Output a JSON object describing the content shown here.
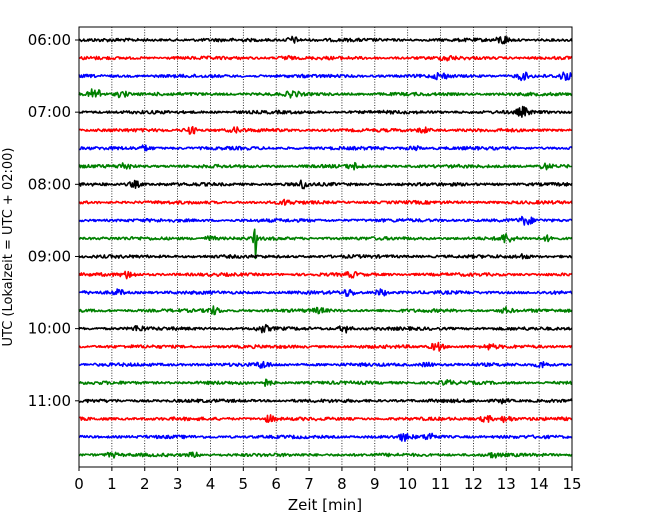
{
  "chart_data": {
    "type": "line",
    "title": "",
    "xlabel": "Zeit  [min]",
    "ylabel": "UTC (Lokalzeit = UTC + 02:00)",
    "xlim": [
      0,
      15
    ],
    "x_ticks": [
      0,
      1,
      2,
      3,
      4,
      5,
      6,
      7,
      8,
      9,
      10,
      11,
      12,
      13,
      14,
      15
    ],
    "grid": "vertical-dotted",
    "y_ticks": [
      {
        "label": "06:00",
        "trace": 0
      },
      {
        "label": "07:00",
        "trace": 4
      },
      {
        "label": "08:00",
        "trace": 8
      },
      {
        "label": "09:00",
        "trace": 12
      },
      {
        "label": "10:00",
        "trace": 16
      },
      {
        "label": "11:00",
        "trace": 20
      }
    ],
    "trace_interval_minutes": 15,
    "trace_colors": [
      "#000000",
      "#ff0000",
      "#0000ff",
      "#008000"
    ],
    "traces": [
      {
        "start": "06:00",
        "events": [
          [
            6.5,
            3
          ],
          [
            12.9,
            4
          ]
        ]
      },
      {
        "start": "06:15",
        "events": [
          [
            6.3,
            2
          ],
          [
            11.2,
            2
          ]
        ]
      },
      {
        "start": "06:30",
        "events": [
          [
            11.0,
            3
          ],
          [
            13.5,
            3.5
          ],
          [
            14.8,
            3.5
          ]
        ]
      },
      {
        "start": "06:45",
        "events": [
          [
            0.5,
            6
          ],
          [
            1.3,
            3
          ],
          [
            6.5,
            2.5
          ]
        ]
      },
      {
        "start": "07:00",
        "events": [
          [
            13.5,
            4
          ]
        ]
      },
      {
        "start": "07:15",
        "events": [
          [
            3.4,
            3.5
          ],
          [
            4.8,
            2
          ],
          [
            10.5,
            2.5
          ]
        ]
      },
      {
        "start": "07:30",
        "events": [
          [
            2.0,
            2
          ],
          [
            10.2,
            2
          ]
        ]
      },
      {
        "start": "07:45",
        "events": [
          [
            1.4,
            3
          ],
          [
            8.4,
            2.5
          ],
          [
            14.2,
            2.5
          ]
        ]
      },
      {
        "start": "08:00",
        "events": [
          [
            1.7,
            3
          ],
          [
            6.8,
            3.5
          ]
        ]
      },
      {
        "start": "08:15",
        "events": [
          [
            6.3,
            2
          ]
        ]
      },
      {
        "start": "08:30",
        "events": [
          [
            13.6,
            4
          ]
        ]
      },
      {
        "start": "08:45",
        "events": [
          [
            5.35,
            26
          ],
          [
            4.0,
            2
          ],
          [
            13.0,
            4
          ],
          [
            14.3,
            2.5
          ]
        ]
      },
      {
        "start": "09:00",
        "events": [
          [
            13.5,
            2
          ]
        ]
      },
      {
        "start": "09:15",
        "events": [
          [
            1.5,
            3
          ],
          [
            8.3,
            2
          ]
        ]
      },
      {
        "start": "09:30",
        "events": [
          [
            1.2,
            2.5
          ],
          [
            8.2,
            3
          ],
          [
            9.2,
            3
          ]
        ]
      },
      {
        "start": "09:45",
        "events": [
          [
            4.1,
            3.5
          ],
          [
            7.3,
            2
          ],
          [
            13.0,
            2.5
          ]
        ]
      },
      {
        "start": "10:00",
        "events": [
          [
            1.8,
            2.5
          ],
          [
            5.6,
            3
          ],
          [
            8.1,
            3.5
          ]
        ]
      },
      {
        "start": "10:15",
        "events": [
          [
            10.9,
            4
          ],
          [
            12.5,
            2
          ]
        ]
      },
      {
        "start": "10:30",
        "events": [
          [
            5.6,
            3
          ],
          [
            10.6,
            2
          ],
          [
            14.1,
            3
          ]
        ]
      },
      {
        "start": "10:45",
        "events": [
          [
            5.7,
            3
          ],
          [
            11.2,
            2
          ]
        ]
      },
      {
        "start": "11:00",
        "events": [
          [
            12.9,
            2
          ]
        ]
      },
      {
        "start": "11:15",
        "events": [
          [
            5.8,
            3
          ],
          [
            12.4,
            3
          ],
          [
            13.0,
            3
          ]
        ]
      },
      {
        "start": "11:30",
        "events": [
          [
            9.9,
            3
          ],
          [
            10.7,
            3
          ]
        ]
      },
      {
        "start": "11:45",
        "events": [
          [
            1.0,
            2
          ],
          [
            3.5,
            2
          ],
          [
            12.6,
            2
          ]
        ]
      }
    ]
  }
}
